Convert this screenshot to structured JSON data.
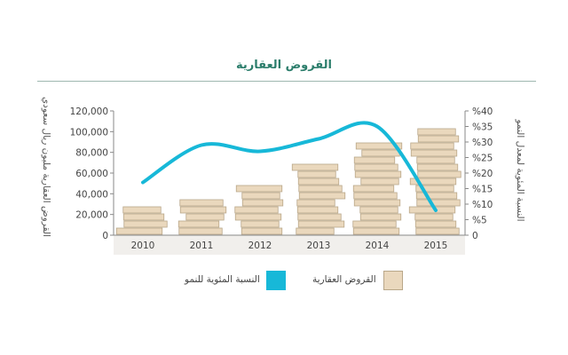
{
  "chart_data": {
    "type": "bar",
    "title": "القروض العقارية",
    "categories": [
      "2010",
      "2011",
      "2012",
      "2013",
      "2014",
      "2015"
    ],
    "series": [
      {
        "name": "القروض العقارية",
        "kind": "bar",
        "axis": "left",
        "color": "#ead8bd",
        "values": [
          31000,
          40000,
          52000,
          69000,
          94000,
          103000
        ]
      },
      {
        "name": "النسبة المئوية للنمو",
        "kind": "line",
        "axis": "right",
        "color": "#17b8d8",
        "values": [
          17,
          29,
          27,
          31,
          35,
          8
        ]
      }
    ],
    "ylabel": "القروض العقارية مليون ريال سعودي",
    "y2label": "النسبة المئوية لمعدل النمو",
    "ylim": [
      0,
      120000
    ],
    "y2lim": [
      0,
      40
    ],
    "yticks": [
      "0",
      "20,000",
      "40,000",
      "60,000",
      "80,000",
      "100,000",
      "120,000"
    ],
    "y2ticks": [
      "0",
      "%5",
      "%10",
      "%15",
      "%20",
      "%25",
      "%30",
      "%35",
      "%40"
    ],
    "grid": false,
    "legend": "bottom",
    "legend_items": {
      "growth": "النسبة المئوية للنمو",
      "loans": "القروض العقارية"
    }
  }
}
